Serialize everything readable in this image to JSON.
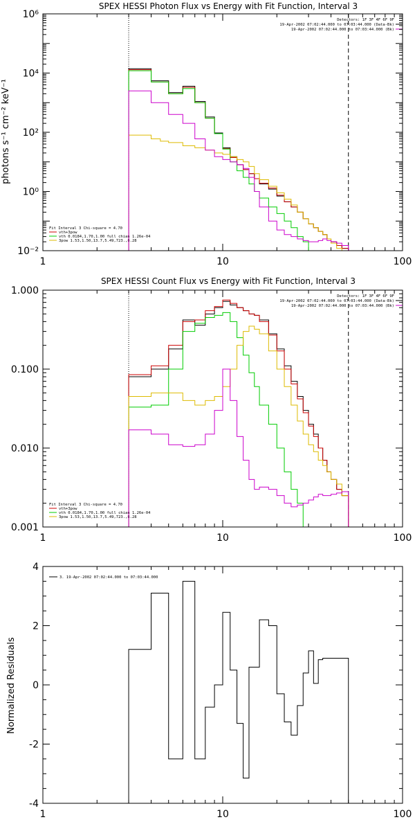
{
  "chart_data": [
    {
      "type": "line",
      "title": "SPEX HESSI Photon Flux vs Energy with Fit Function, Interval 3",
      "ylabel": "photons s⁻¹ cm⁻² keV⁻¹",
      "xlabel": "",
      "x_scale": "log",
      "y_scale": "log",
      "xlim": [
        1,
        100
      ],
      "ylim": [
        0.01,
        1000000
      ],
      "x_tick_labels": [
        "1",
        "10",
        "100"
      ],
      "y_tick_labels": [
        "10⁻²",
        "10⁰",
        "10²",
        "10⁴",
        "10⁶"
      ],
      "vlines": [
        {
          "x": 3.0,
          "style": "dotted"
        },
        {
          "x": 50.0,
          "style": "dashed"
        }
      ],
      "legend_right": [
        {
          "text": "Detectors: 1F 3F 4F 6F 9F",
          "color": ""
        },
        {
          "text": "19-Apr-2002 07:02:44.000 to 07:03:44.000 (Data-Bk)",
          "color": "#000000"
        },
        {
          "text": "19-Apr-2002 07:02:44.000 to 07:03:44.000 (Bk)",
          "color": "#cc00cc"
        }
      ],
      "legend_left": [
        {
          "text": "Fit Interval 3   Chi-square = 4.70",
          "color": ""
        },
        {
          "text": "vth+3pow",
          "color": "#cc0000"
        },
        {
          "text": "vth 0.0184,1.70,1.00  full chian 1.26e-04",
          "color": "#00cc00"
        },
        {
          "text": "3pow 1.53,1.50,13.7,5.49,723.,8.28",
          "color": "#ddbb00"
        }
      ],
      "edges": [
        3,
        3.5,
        4,
        4.5,
        5,
        6,
        7,
        8,
        9,
        10,
        11,
        12,
        13,
        14,
        15,
        16,
        18,
        20,
        22,
        24,
        26,
        28,
        30,
        32,
        34,
        36,
        38,
        40,
        43,
        46,
        50
      ],
      "series": [
        {
          "color": "#000000",
          "values": [
            14000,
            14000,
            5500,
            5500,
            2200,
            3600,
            1100,
            330,
            95,
            30,
            15,
            8,
            5.5,
            4,
            2.7,
            1.8,
            1.2,
            0.7,
            0.45,
            0.3,
            0.2,
            0.12,
            0.08,
            0.06,
            0.045,
            0.035,
            0.025,
            0.02,
            0.015,
            0.012
          ]
        },
        {
          "color": "#cc0000",
          "values": [
            13000,
            13000,
            5000,
            5000,
            2000,
            3300,
            1000,
            300,
            90,
            28,
            14,
            8,
            5.5,
            4,
            2.7,
            1.9,
            1.3,
            0.75,
            0.45,
            0.3,
            0.2,
            0.12,
            0.08,
            0.06,
            0.045,
            0.035,
            0.025,
            0.02,
            0.015,
            0.012
          ]
        },
        {
          "color": "#00cc00",
          "values": [
            12000,
            12000,
            5000,
            5000,
            2000,
            3000,
            1000,
            300,
            90,
            27,
            10,
            5,
            3,
            1.8,
            1,
            0.6,
            0.3,
            0.18,
            0.1,
            0.06,
            0.03,
            0.02,
            0.01,
            0.01,
            0.01,
            0.01,
            0.01,
            0.01,
            0.01,
            0.01
          ]
        },
        {
          "color": "#ddbb00",
          "values": [
            80,
            80,
            60,
            50,
            45,
            35,
            30,
            25,
            20,
            18,
            15,
            12,
            10,
            7,
            4,
            2.5,
            1.5,
            0.9,
            0.55,
            0.35,
            0.2,
            0.12,
            0.08,
            0.06,
            0.045,
            0.035,
            0.025,
            0.018,
            0.012,
            0.01
          ]
        },
        {
          "color": "#cc00cc",
          "values": [
            2500,
            2500,
            1000,
            1000,
            400,
            200,
            60,
            25,
            15,
            12,
            10,
            8,
            6,
            3,
            1,
            0.3,
            0.1,
            0.05,
            0.035,
            0.03,
            0.025,
            0.022,
            0.02,
            0.02,
            0.022,
            0.025,
            0.022,
            0.02,
            0.018,
            0.015
          ]
        }
      ]
    },
    {
      "type": "line",
      "title": "SPEX HESSI Count Flux vs Energy with Fit Function, Interval 3",
      "ylabel": "",
      "xlabel": "",
      "x_scale": "log",
      "y_scale": "log",
      "xlim": [
        1,
        100
      ],
      "ylim": [
        0.001,
        1
      ],
      "x_tick_labels": [
        "1",
        "10",
        "100"
      ],
      "y_tick_labels": [
        "0.001",
        "0.010",
        "0.100",
        "1.000"
      ],
      "vlines": [
        {
          "x": 3.0,
          "style": "dotted"
        },
        {
          "x": 50.0,
          "style": "dashed"
        }
      ],
      "legend_right": [
        {
          "text": "Detectors: 1F 3F 4F 6F 9F",
          "color": ""
        },
        {
          "text": "19-Apr-2002 07:02:44.000 to 07:03:44.000 (Data-Bk)",
          "color": "#000000"
        },
        {
          "text": "19-Apr-2002 07:02:44.000 to 07:03:44.000 (Bk)",
          "color": "#cc00cc"
        }
      ],
      "legend_left": [
        {
          "text": "Fit Interval 3   Chi-square = 4.70",
          "color": ""
        },
        {
          "text": "vth+3pow",
          "color": "#cc0000"
        },
        {
          "text": "vth 0.0184,1.70,1.00  full chian 1.26e-04",
          "color": "#00cc00"
        },
        {
          "text": "3pow 1.53,1.50,13.7,5.49,723.,8.28",
          "color": "#ddbb00"
        }
      ],
      "edges": [
        3,
        3.5,
        4,
        4.5,
        5,
        6,
        7,
        8,
        9,
        10,
        11,
        12,
        13,
        14,
        15,
        16,
        18,
        20,
        22,
        24,
        26,
        28,
        30,
        32,
        34,
        36,
        38,
        40,
        43,
        46,
        50,
        55
      ],
      "series": [
        {
          "color": "#000000",
          "values": [
            0.08,
            0.08,
            0.1,
            0.1,
            0.18,
            0.42,
            0.36,
            0.5,
            0.6,
            0.72,
            0.65,
            0.6,
            0.55,
            0.5,
            0.48,
            0.42,
            0.28,
            0.18,
            0.11,
            0.07,
            0.045,
            0.03,
            0.02,
            0.015,
            0.01,
            0.007,
            0.005,
            0.004,
            0.003,
            0.0025,
            0.001
          ]
        },
        {
          "color": "#cc0000",
          "values": [
            0.085,
            0.085,
            0.11,
            0.11,
            0.2,
            0.4,
            0.42,
            0.55,
            0.62,
            0.75,
            0.68,
            0.6,
            0.55,
            0.5,
            0.48,
            0.4,
            0.27,
            0.17,
            0.1,
            0.065,
            0.042,
            0.028,
            0.019,
            0.014,
            0.01,
            0.007,
            0.005,
            0.004,
            0.003,
            0.0025,
            0.001
          ]
        },
        {
          "color": "#00cc00",
          "values": [
            0.033,
            0.033,
            0.035,
            0.035,
            0.1,
            0.3,
            0.38,
            0.45,
            0.48,
            0.52,
            0.4,
            0.25,
            0.15,
            0.09,
            0.06,
            0.035,
            0.02,
            0.01,
            0.005,
            0.003,
            0.002,
            0.001,
            0.001,
            0.001,
            0.001,
            0.001,
            0.001,
            0.001,
            0.001,
            0.001,
            0.001
          ]
        },
        {
          "color": "#ddbb00",
          "values": [
            0.045,
            0.045,
            0.05,
            0.05,
            0.05,
            0.04,
            0.035,
            0.04,
            0.045,
            0.06,
            0.1,
            0.2,
            0.3,
            0.35,
            0.32,
            0.28,
            0.17,
            0.1,
            0.06,
            0.035,
            0.022,
            0.015,
            0.011,
            0.009,
            0.007,
            0.006,
            0.005,
            0.004,
            0.0035,
            0.0025,
            0.001
          ]
        },
        {
          "color": "#cc00cc",
          "values": [
            0.017,
            0.017,
            0.015,
            0.015,
            0.011,
            0.0105,
            0.011,
            0.015,
            0.03,
            0.1,
            0.04,
            0.014,
            0.007,
            0.004,
            0.003,
            0.0032,
            0.003,
            0.0025,
            0.002,
            0.0018,
            0.0019,
            0.002,
            0.0022,
            0.0024,
            0.0026,
            0.0025,
            0.0025,
            0.0026,
            0.0027,
            0.0028,
            0.001
          ]
        }
      ]
    },
    {
      "type": "line",
      "title": "",
      "ylabel": "Normalized Residuals",
      "xlabel": "",
      "x_scale": "log",
      "y_scale": "linear",
      "xlim": [
        1,
        100
      ],
      "ylim": [
        -4,
        4
      ],
      "x_tick_labels": [
        "1",
        "10",
        "100"
      ],
      "y_tick_labels": [
        "-4",
        "-2",
        "0",
        "2",
        "4"
      ],
      "legend_left": [
        {
          "text": "3. 19-Apr-2002 07:02:44.000 to 07:03:44.000",
          "color": "#000000"
        }
      ],
      "edges": [
        3,
        3.5,
        4,
        4.5,
        5,
        6,
        7,
        8,
        9,
        10,
        11,
        12,
        13,
        14,
        15,
        16,
        18,
        20,
        22,
        24,
        26,
        28,
        30,
        32,
        34,
        36,
        38,
        40,
        43,
        46,
        50
      ],
      "series": [
        {
          "color": "#000000",
          "values": [
            1.2,
            1.2,
            3.1,
            3.1,
            -2.5,
            3.5,
            -2.5,
            -0.75,
            0.0,
            2.45,
            0.5,
            -1.3,
            -3.15,
            0.6,
            0.6,
            2.2,
            2.0,
            -0.3,
            -1.25,
            -1.7,
            -0.7,
            0.4,
            1.15,
            0.05,
            0.85,
            0.9,
            0.9,
            0.9,
            0.9,
            0.9
          ]
        }
      ]
    }
  ]
}
